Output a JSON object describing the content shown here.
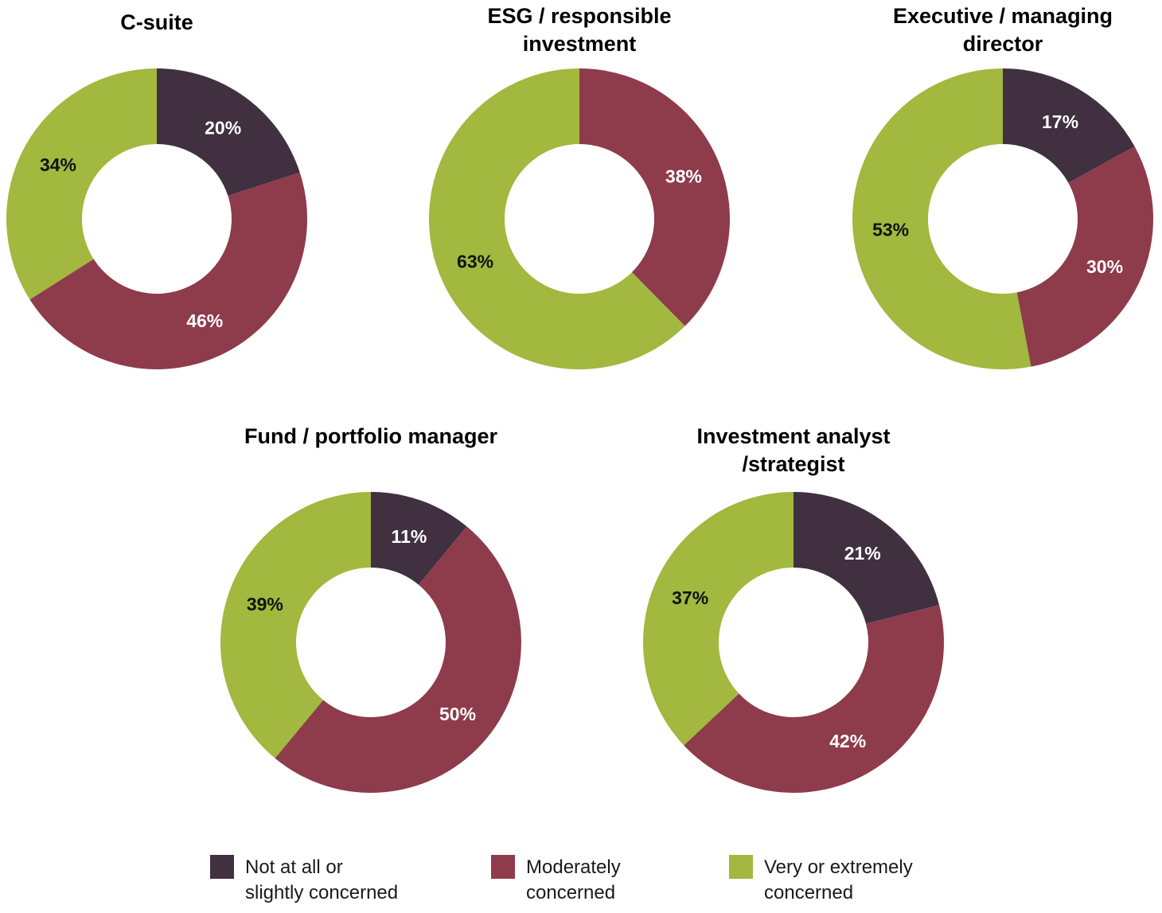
{
  "colors": {
    "not_concerned": "#403040",
    "moderately_concerned": "#8E3B4B",
    "very_concerned": "#A2B83E"
  },
  "legend": [
    {
      "key": "not_concerned",
      "line1": "Not at all or",
      "line2": "slightly concerned"
    },
    {
      "key": "moderately_concerned",
      "line1": "Moderately",
      "line2": "concerned"
    },
    {
      "key": "very_concerned",
      "line1": "Very or extremely",
      "line2": "concerned"
    }
  ],
  "chart_data": [
    {
      "type": "pie",
      "donut": true,
      "title_lines": [
        "C-suite"
      ],
      "series": [
        "Not at all or slightly concerned",
        "Moderately concerned",
        "Very or extremely concerned"
      ],
      "values": [
        20,
        46,
        34
      ],
      "labels": [
        "20%",
        "46%",
        "34%"
      ],
      "label_colors": [
        "#ffffff",
        "#ffffff",
        "#111111"
      ]
    },
    {
      "type": "pie",
      "donut": true,
      "title_lines": [
        "ESG / responsible",
        "investment"
      ],
      "series": [
        "Not at all or slightly concerned",
        "Moderately concerned",
        "Very or extremely concerned"
      ],
      "values": [
        0,
        38,
        63
      ],
      "labels": [
        "",
        "38%",
        "63%"
      ],
      "label_colors": [
        "#ffffff",
        "#ffffff",
        "#111111"
      ]
    },
    {
      "type": "pie",
      "donut": true,
      "title_lines": [
        "Executive / managing",
        "director"
      ],
      "series": [
        "Not at all or slightly concerned",
        "Moderately concerned",
        "Very or extremely concerned"
      ],
      "values": [
        17,
        30,
        53
      ],
      "labels": [
        "17%",
        "30%",
        "53%"
      ],
      "label_colors": [
        "#ffffff",
        "#ffffff",
        "#111111"
      ]
    },
    {
      "type": "pie",
      "donut": true,
      "title_lines": [
        "Fund / portfolio manager"
      ],
      "series": [
        "Not at all or slightly concerned",
        "Moderately concerned",
        "Very or extremely concerned"
      ],
      "values": [
        11,
        50,
        39
      ],
      "labels": [
        "11%",
        "50%",
        "39%"
      ],
      "label_colors": [
        "#ffffff",
        "#ffffff",
        "#111111"
      ]
    },
    {
      "type": "pie",
      "donut": true,
      "title_lines": [
        "Investment analyst",
        "/strategist"
      ],
      "series": [
        "Not at all or slightly concerned",
        "Moderately concerned",
        "Very or extremely concerned"
      ],
      "values": [
        21,
        42,
        37
      ],
      "labels": [
        "21%",
        "42%",
        "37%"
      ],
      "label_colors": [
        "#ffffff",
        "#ffffff",
        "#111111"
      ]
    }
  ]
}
